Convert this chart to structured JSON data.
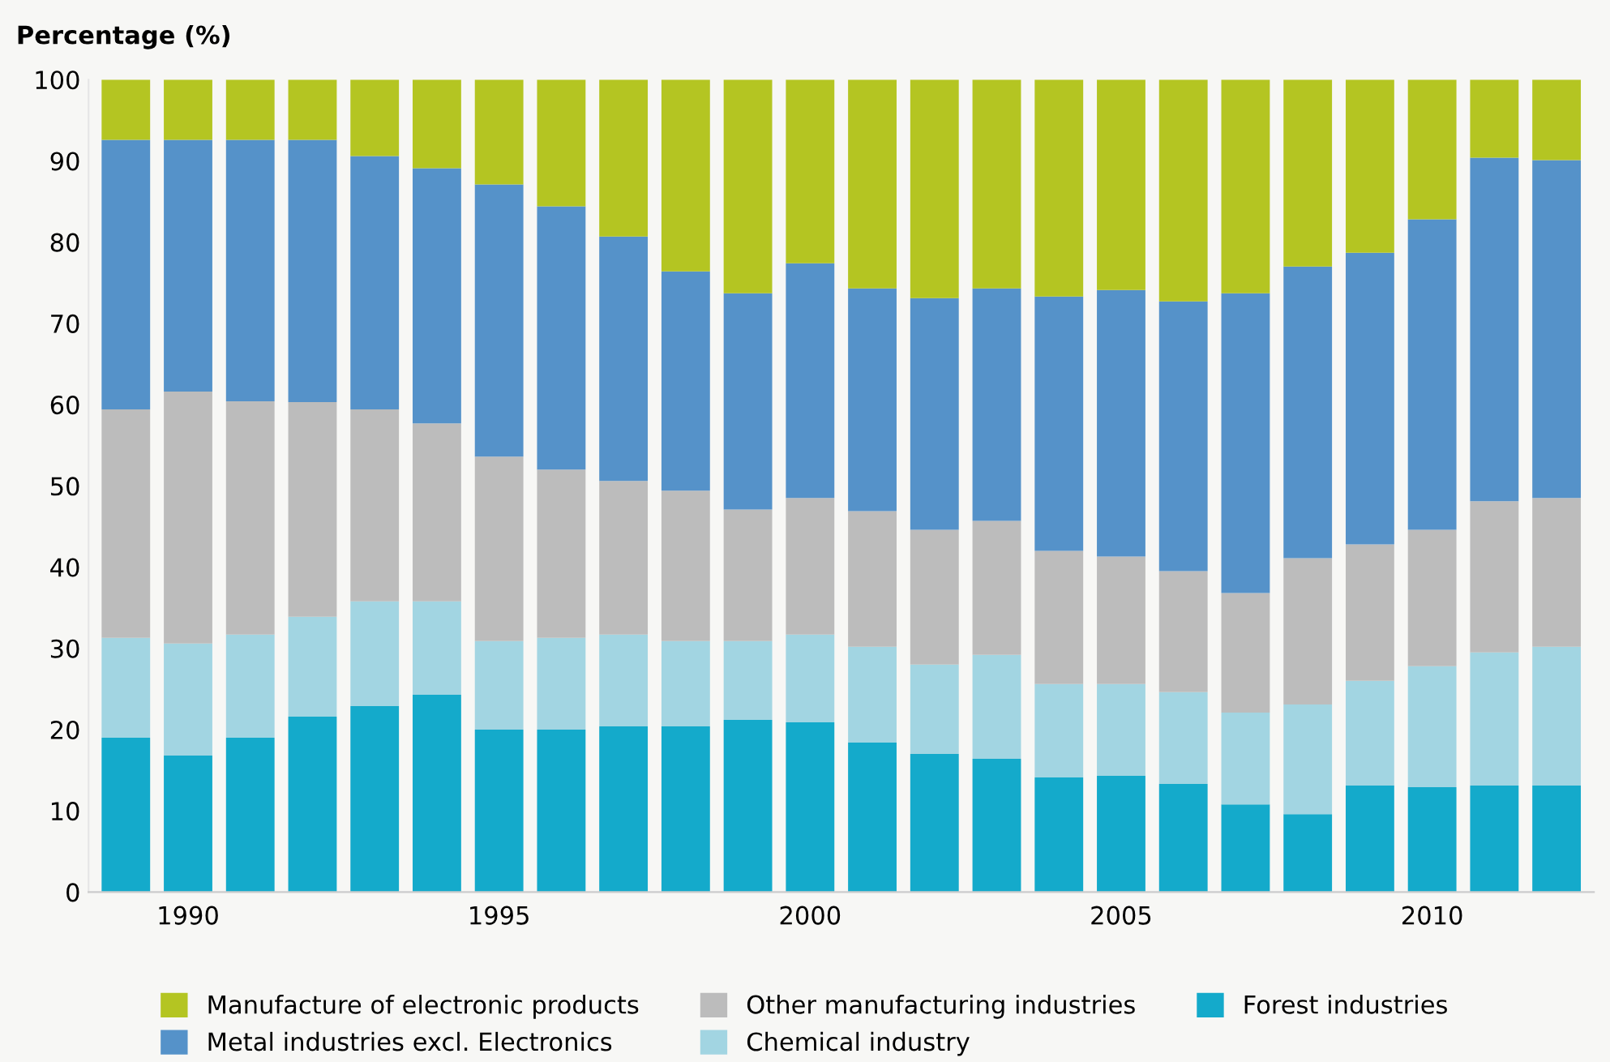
{
  "chart_data": {
    "type": "bar",
    "stacked": true,
    "ylabel": "Percentage (%)",
    "categories": [
      null,
      "1990",
      null,
      null,
      null,
      null,
      "1995",
      null,
      null,
      null,
      null,
      "2000",
      null,
      null,
      null,
      null,
      "2005",
      null,
      null,
      null,
      null,
      "2010",
      null,
      null
    ],
    "ylim": [
      0,
      100
    ],
    "yticks": [
      0,
      10,
      20,
      30,
      40,
      50,
      60,
      70,
      80,
      90,
      100
    ],
    "grid": false,
    "legend": "bottom",
    "series": [
      {
        "name": "Forest industries",
        "color": "#14aacb",
        "values": [
          19.0,
          16.8,
          19.0,
          21.6,
          22.9,
          24.3,
          20.0,
          20.0,
          20.4,
          20.4,
          21.2,
          20.9,
          18.4,
          17.0,
          16.4,
          14.1,
          14.3,
          13.3,
          10.8,
          9.6,
          13.1,
          12.9,
          13.1,
          13.1
        ]
      },
      {
        "name": "Chemical industry",
        "color": "#a2d5e2",
        "values": [
          12.3,
          13.8,
          12.7,
          12.3,
          12.9,
          11.5,
          10.9,
          11.3,
          11.3,
          10.5,
          9.7,
          10.8,
          11.8,
          11.0,
          12.8,
          11.5,
          11.3,
          11.3,
          11.3,
          13.5,
          12.9,
          14.9,
          16.4,
          17.1
        ]
      },
      {
        "name": "Other manufacturing industries",
        "color": "#bcbcbc",
        "values": [
          28.1,
          31.0,
          28.7,
          26.4,
          23.6,
          21.9,
          22.7,
          20.7,
          18.9,
          18.5,
          16.2,
          16.8,
          16.7,
          16.6,
          16.5,
          16.4,
          15.7,
          14.9,
          14.7,
          18.0,
          16.8,
          16.8,
          18.6,
          18.3
        ]
      },
      {
        "name": "Metal industries excl. Electronics",
        "color": "#5592c9",
        "values": [
          33.2,
          31.0,
          32.2,
          32.3,
          31.2,
          31.4,
          33.5,
          32.4,
          30.1,
          27.0,
          26.6,
          28.9,
          27.4,
          28.5,
          28.6,
          31.3,
          32.8,
          33.2,
          36.9,
          35.9,
          35.9,
          38.2,
          42.3,
          41.6
        ]
      },
      {
        "name": "Manufacture of electronic products",
        "color": "#b4c522",
        "values": [
          7.4,
          7.4,
          7.4,
          7.4,
          9.4,
          10.9,
          12.9,
          15.6,
          19.3,
          23.6,
          26.3,
          22.6,
          25.7,
          26.9,
          25.7,
          26.7,
          25.9,
          27.3,
          26.3,
          23.0,
          21.3,
          17.2,
          9.6,
          9.9
        ]
      }
    ]
  }
}
